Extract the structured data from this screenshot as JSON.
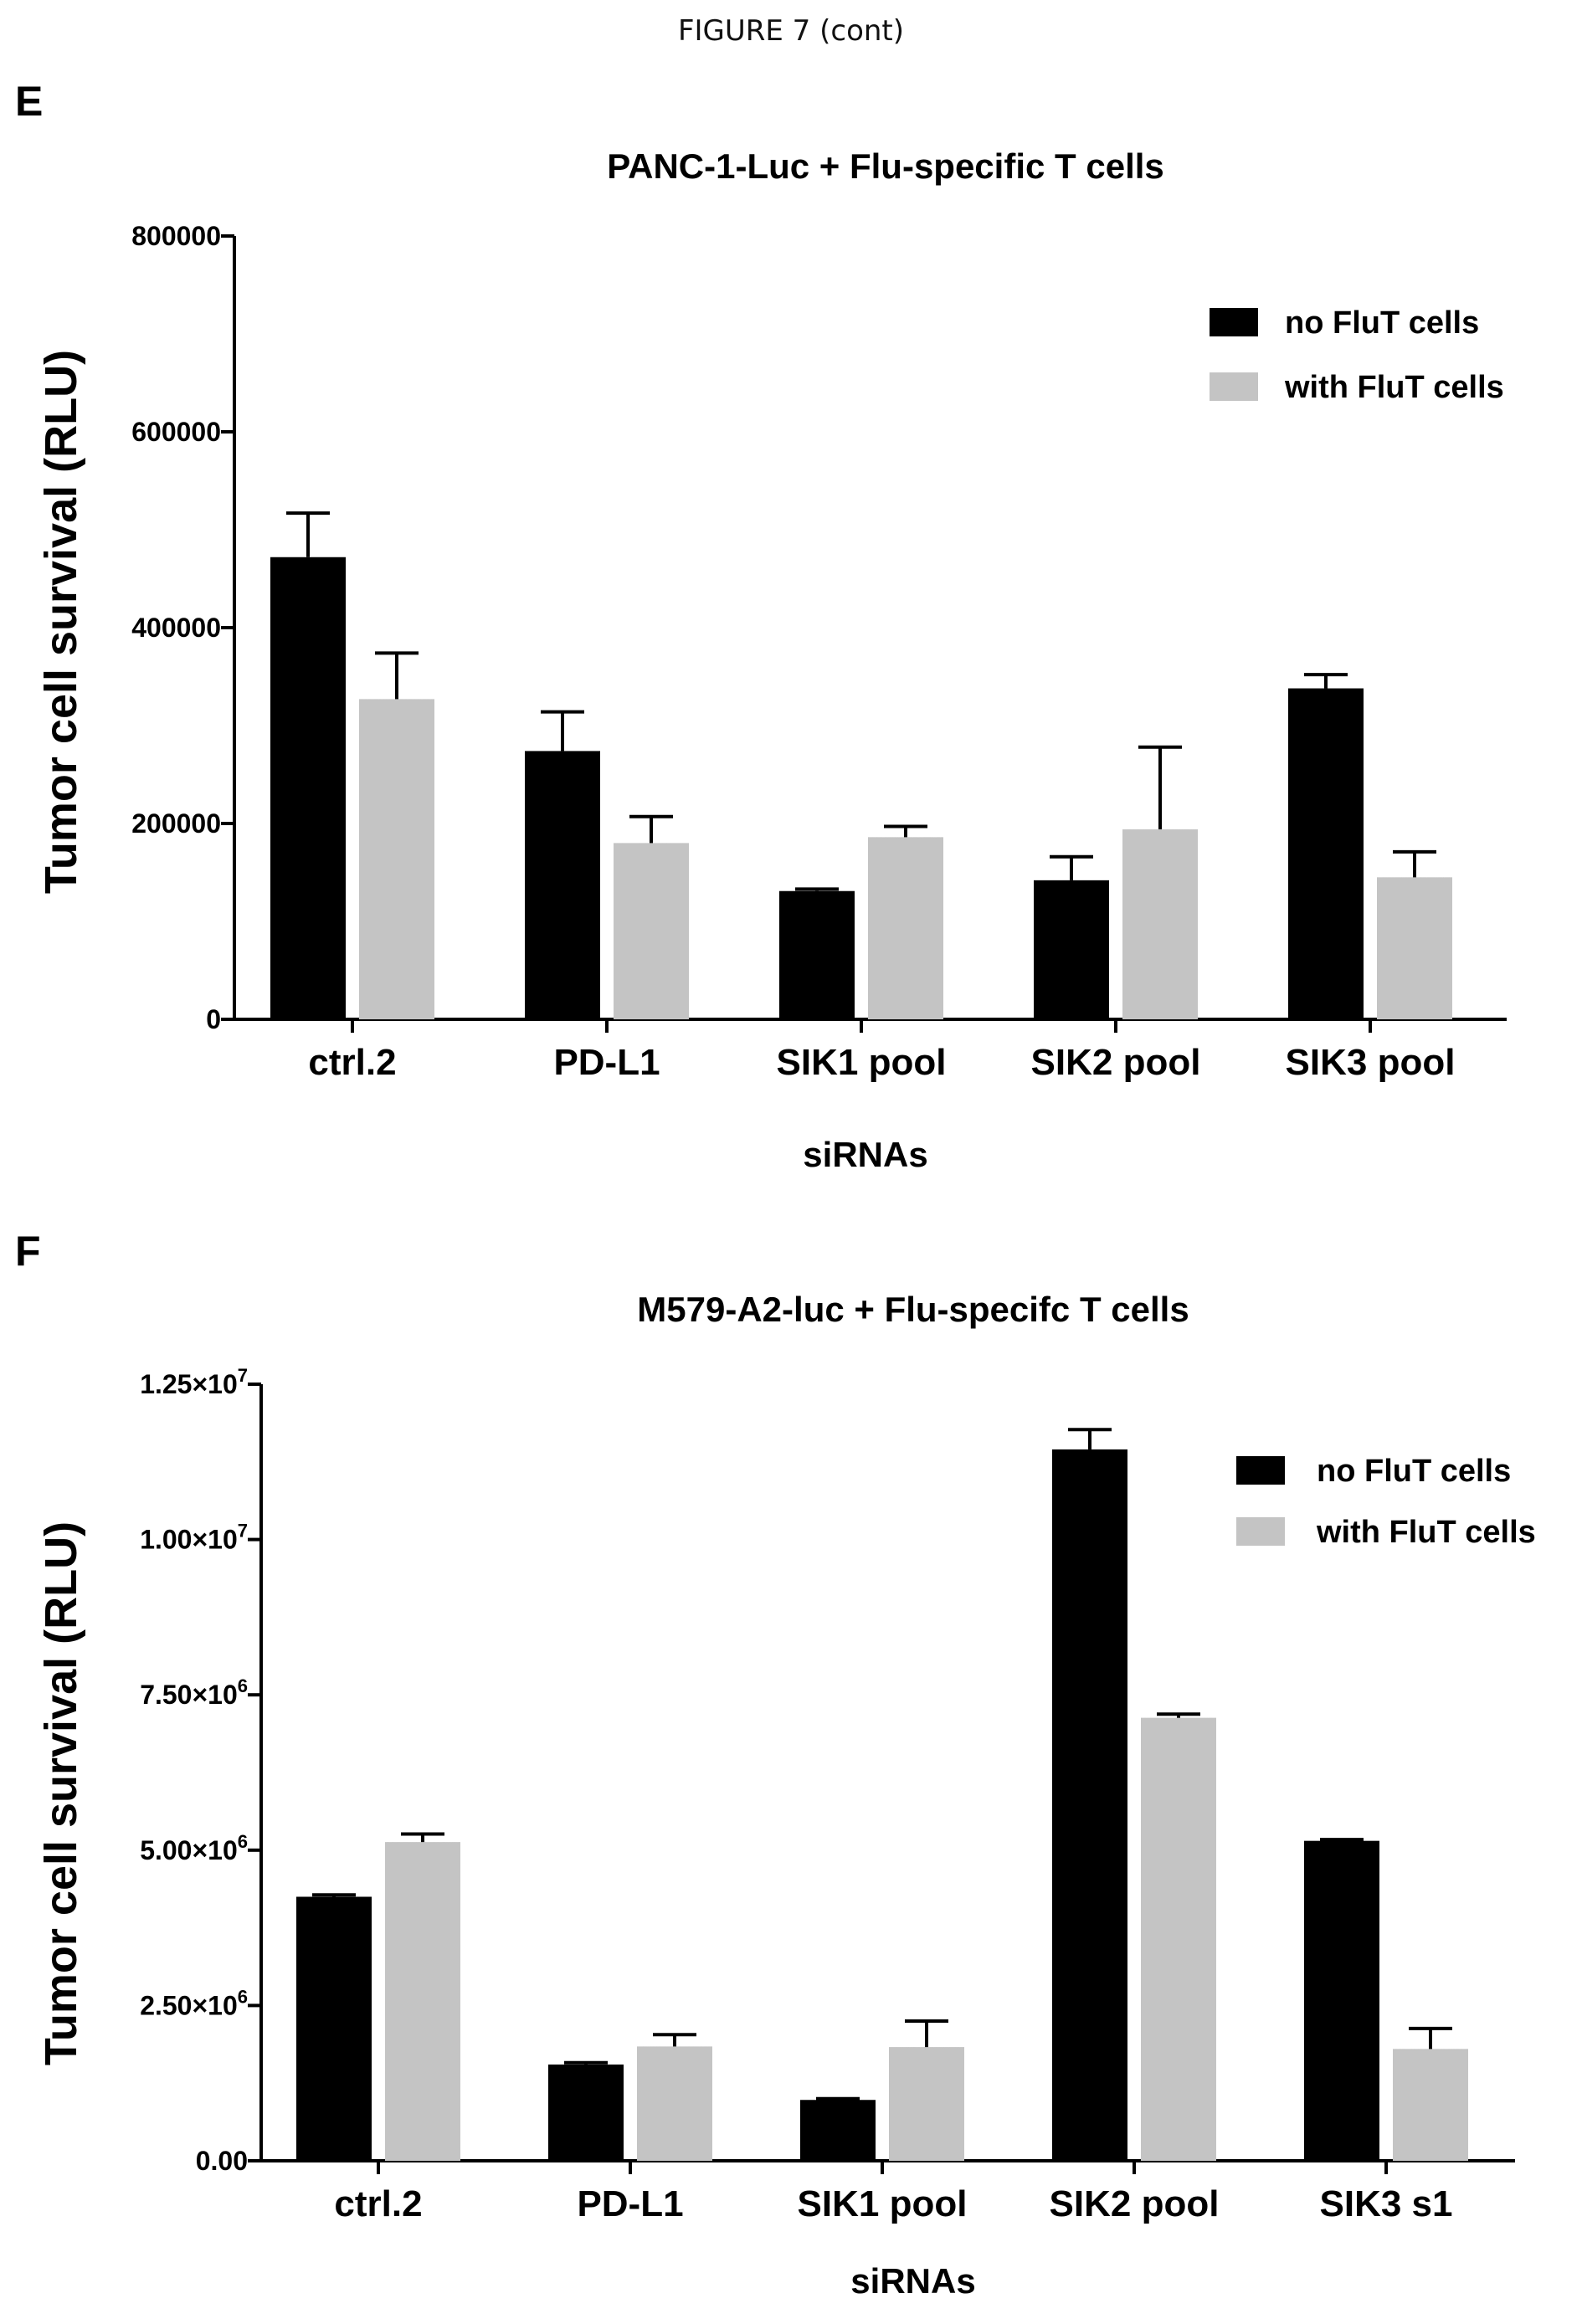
{
  "figure_caption": "FIGURE 7 (cont)",
  "colors": {
    "no_flut": "#000000",
    "with_flut": "#c4c4c4"
  },
  "chart_data": [
    {
      "panel": "E",
      "type": "bar",
      "title": "PANC-1-Luc + Flu-specific T cells",
      "xlabel": "siRNAs",
      "ylabel": "Tumor cell survival  (RLU)",
      "ylim": [
        0,
        800000
      ],
      "yticks": [
        0,
        200000,
        400000,
        600000,
        800000
      ],
      "ytick_labels": [
        "0",
        "200000",
        "400000",
        "600000",
        "800000"
      ],
      "categories": [
        "ctrl.2",
        "PD-L1",
        "SIK1 pool",
        "SIK2 pool",
        "SIK3 pool"
      ],
      "series": [
        {
          "name": "no FluT cells",
          "values": [
            472000,
            274000,
            131000,
            142000,
            338000
          ],
          "errors": [
            45000,
            40000,
            2000,
            24000,
            14000
          ]
        },
        {
          "name": "with FluT cells",
          "values": [
            327000,
            180000,
            186000,
            194000,
            145000
          ],
          "errors": [
            47000,
            27000,
            11000,
            84000,
            26000
          ]
        }
      ],
      "legend_position": "top-right"
    },
    {
      "panel": "F",
      "type": "bar",
      "title": "M579-A2-luc + Flu-specifc T cells",
      "xlabel": "siRNAs",
      "ylabel": "Tumor cell survival  (RLU)",
      "ylim": [
        0,
        12500000
      ],
      "yticks": [
        0,
        2500000,
        5000000,
        7500000,
        10000000,
        12500000
      ],
      "ytick_labels": [
        {
          "base": "0.00",
          "exp": ""
        },
        {
          "base": "2.50×10",
          "exp": "6"
        },
        {
          "base": "5.00×10",
          "exp": "6"
        },
        {
          "base": "7.50×10",
          "exp": "6"
        },
        {
          "base": "1.00×10",
          "exp": "7"
        },
        {
          "base": "1.25×10",
          "exp": "7"
        }
      ],
      "categories": [
        "ctrl.2",
        "PD-L1",
        "SIK1 pool",
        "SIK2 pool",
        "SIK3 s1"
      ],
      "series": [
        {
          "name": "no FluT cells",
          "values": [
            4250000,
            1550000,
            980000,
            11450000,
            5150000
          ],
          "errors": [
            30000,
            30000,
            20000,
            320000,
            20000
          ]
        },
        {
          "name": "with FluT cells",
          "values": [
            5130000,
            1840000,
            1830000,
            7130000,
            1800000
          ],
          "errors": [
            130000,
            190000,
            420000,
            60000,
            330000
          ]
        }
      ],
      "legend_position": "top-right"
    }
  ]
}
